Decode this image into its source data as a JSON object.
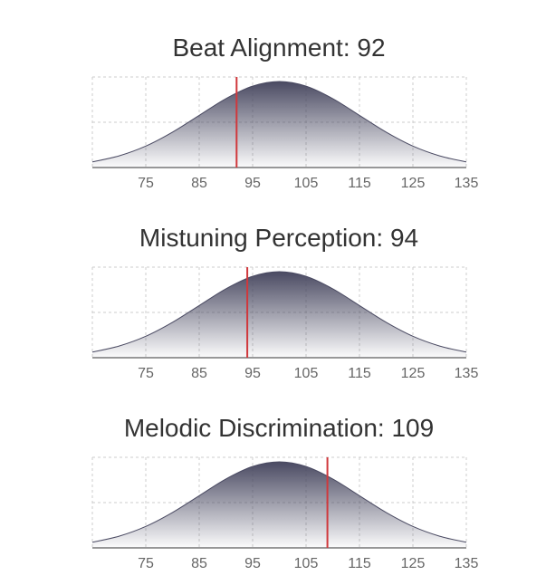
{
  "chart_data": [
    {
      "type": "area",
      "title": "Beat Alignment: 92",
      "score": 92,
      "score_color": "#d0383c",
      "x": [
        65,
        70,
        75,
        80,
        85,
        90,
        95,
        100,
        105,
        110,
        115,
        120,
        125,
        130,
        135
      ],
      "values": [
        0.062,
        0.129,
        0.237,
        0.391,
        0.576,
        0.761,
        0.899,
        0.95,
        0.899,
        0.761,
        0.576,
        0.391,
        0.237,
        0.129,
        0.062
      ],
      "color": "#4a4a62",
      "xlim": [
        65,
        135
      ],
      "ylim": [
        0,
        1
      ],
      "xticks": [
        75,
        85,
        95,
        105,
        115,
        125,
        135
      ],
      "ygrid": [
        0.5,
        1
      ],
      "grid": true
    },
    {
      "type": "area",
      "title": "Mistuning Perception: 94",
      "score": 94,
      "score_color": "#d0383c",
      "x": [
        65,
        70,
        75,
        80,
        85,
        90,
        95,
        100,
        105,
        110,
        115,
        120,
        125,
        130,
        135
      ],
      "values": [
        0.062,
        0.129,
        0.237,
        0.391,
        0.576,
        0.761,
        0.899,
        0.95,
        0.899,
        0.761,
        0.576,
        0.391,
        0.237,
        0.129,
        0.062
      ],
      "color": "#4a4a62",
      "xlim": [
        65,
        135
      ],
      "ylim": [
        0,
        1
      ],
      "xticks": [
        75,
        85,
        95,
        105,
        115,
        125,
        135
      ],
      "ygrid": [
        0.5,
        1
      ],
      "grid": true
    },
    {
      "type": "area",
      "title": "Melodic Discrimination: 109",
      "score": 109,
      "score_color": "#d0383c",
      "x": [
        65,
        70,
        75,
        80,
        85,
        90,
        95,
        100,
        105,
        110,
        115,
        120,
        125,
        130,
        135
      ],
      "values": [
        0.062,
        0.129,
        0.237,
        0.391,
        0.576,
        0.761,
        0.899,
        0.95,
        0.899,
        0.761,
        0.576,
        0.391,
        0.237,
        0.129,
        0.062
      ],
      "color": "#4a4a62",
      "xlim": [
        65,
        135
      ],
      "ylim": [
        0,
        1
      ],
      "xticks": [
        75,
        85,
        95,
        105,
        115,
        125,
        135
      ],
      "ygrid": [
        0.5,
        1
      ],
      "grid": true
    }
  ]
}
